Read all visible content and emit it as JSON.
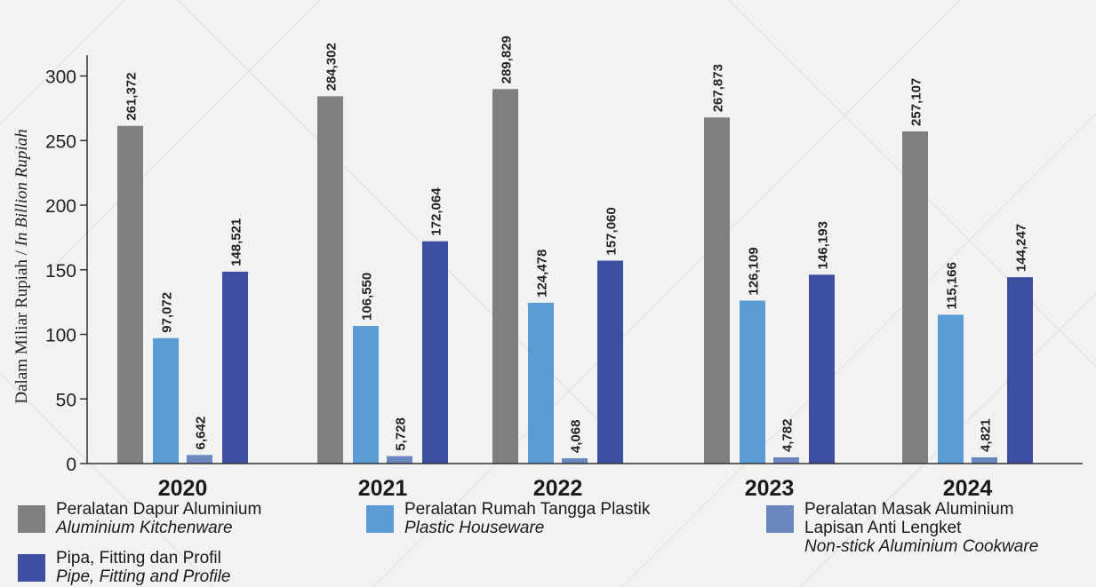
{
  "chart_data": {
    "type": "bar",
    "title": "",
    "ylabel_main": "Dalam Miliar Rupiah / ",
    "ylabel_italic": "In Billion Rupiah",
    "xlabel": "",
    "ylim": [
      0,
      310
    ],
    "yticks": [
      0,
      50,
      100,
      150,
      200,
      250,
      300
    ],
    "categories": [
      "2020",
      "2021",
      "2022",
      "2023",
      "2024"
    ],
    "grid": false,
    "legend_position": "bottom",
    "series": [
      {
        "name": "Peralatan Dapur Aluminium",
        "name_en": "Aluminium Kitchenware",
        "color": "#7f7f7f",
        "values": [
          261.372,
          284.302,
          289.829,
          267.873,
          257.107
        ],
        "labels": [
          "261,372",
          "284,302",
          "289,829",
          "267,873",
          "257,107"
        ]
      },
      {
        "name": "Peralatan Rumah Tangga Plastik",
        "name_en": "Plastic Houseware",
        "color": "#5b9bd5",
        "values": [
          97.072,
          106.55,
          124.478,
          126.109,
          115.166
        ],
        "labels": [
          "97,072",
          "106,550",
          "124,478",
          "126,109",
          "115,166"
        ]
      },
      {
        "name": "Peralatan Masak Aluminium Lapisan Anti Lengket",
        "name_line1": "Peralatan Masak Aluminium",
        "name_line2": "Lapisan Anti Lengket",
        "name_en": "Non-stick Aluminium Cookware",
        "color": "#6a87bd",
        "values": [
          6.642,
          5.728,
          4.068,
          4.782,
          4.821
        ],
        "labels": [
          "6,642",
          "5,728",
          "4,068",
          "4,782",
          "4,821"
        ]
      },
      {
        "name": "Pipa, Fitting dan Profil",
        "name_en": "Pipe, Fitting and Profile",
        "color": "#3d4ea0",
        "values": [
          148.521,
          172.064,
          157.06,
          146.193,
          144.247
        ],
        "labels": [
          "148,521",
          "172,064",
          "157,060",
          "146,193",
          "144,247"
        ]
      }
    ]
  }
}
